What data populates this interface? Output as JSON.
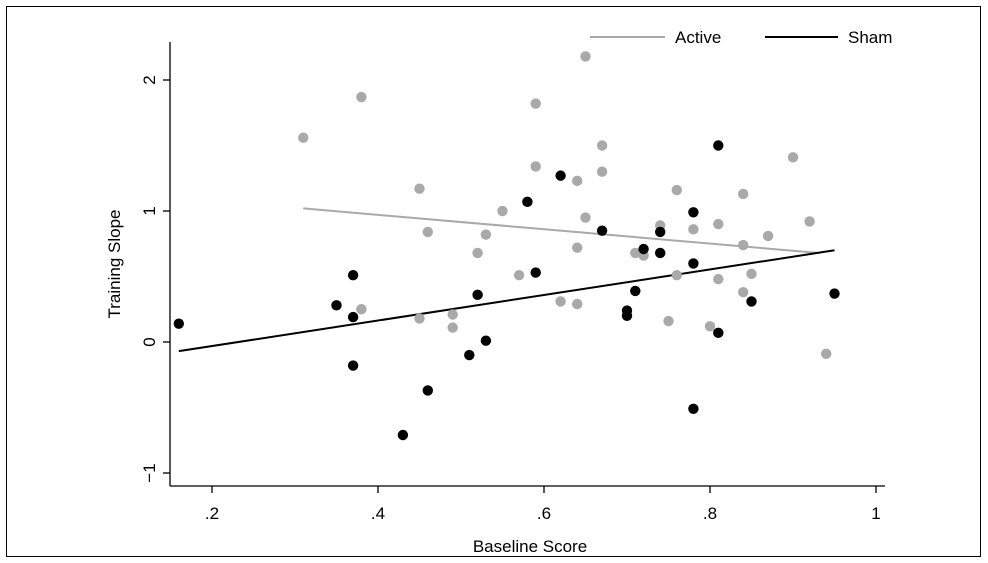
{
  "chart_data": {
    "type": "scatter",
    "xlabel": "Baseline Score",
    "ylabel": "Training Slope",
    "xlim": [
      0.15,
      1.02
    ],
    "ylim": [
      -1.05,
      2.3
    ],
    "x_ticks": [
      0.2,
      0.4,
      0.6,
      0.8,
      1.0
    ],
    "x_tick_labels": [
      ".2",
      ".4",
      ".6",
      ".8",
      "1"
    ],
    "y_ticks": [
      -1,
      0,
      1,
      2
    ],
    "y_tick_labels": [
      "−1",
      "0",
      "1",
      "2"
    ],
    "grid": false,
    "legend_position": "top-right",
    "series": [
      {
        "name": "Active",
        "color": "#a9a9a9",
        "fit_line": {
          "x": [
            0.31,
            0.93
          ],
          "y": [
            1.02,
            0.68
          ]
        },
        "points": [
          [
            0.31,
            1.56
          ],
          [
            0.38,
            1.87
          ],
          [
            0.38,
            0.25
          ],
          [
            0.45,
            1.17
          ],
          [
            0.46,
            0.84
          ],
          [
            0.45,
            0.18
          ],
          [
            0.49,
            0.11
          ],
          [
            0.49,
            0.21
          ],
          [
            0.52,
            0.68
          ],
          [
            0.53,
            0.82
          ],
          [
            0.55,
            1.0
          ],
          [
            0.57,
            0.51
          ],
          [
            0.59,
            1.82
          ],
          [
            0.59,
            1.34
          ],
          [
            0.62,
            0.31
          ],
          [
            0.64,
            1.23
          ],
          [
            0.64,
            0.72
          ],
          [
            0.64,
            0.29
          ],
          [
            0.65,
            2.18
          ],
          [
            0.65,
            0.95
          ],
          [
            0.67,
            1.5
          ],
          [
            0.67,
            1.3
          ],
          [
            0.71,
            0.68
          ],
          [
            0.72,
            0.66
          ],
          [
            0.74,
            0.89
          ],
          [
            0.75,
            0.16
          ],
          [
            0.76,
            1.16
          ],
          [
            0.76,
            0.51
          ],
          [
            0.78,
            0.86
          ],
          [
            0.8,
            0.12
          ],
          [
            0.81,
            0.9
          ],
          [
            0.81,
            0.48
          ],
          [
            0.84,
            1.13
          ],
          [
            0.84,
            0.74
          ],
          [
            0.84,
            0.38
          ],
          [
            0.85,
            0.52
          ],
          [
            0.87,
            0.81
          ],
          [
            0.9,
            1.41
          ],
          [
            0.92,
            0.92
          ],
          [
            0.94,
            -0.09
          ]
        ]
      },
      {
        "name": "Sham",
        "color": "#000000",
        "fit_line": {
          "x": [
            0.16,
            0.95
          ],
          "y": [
            -0.07,
            0.7
          ]
        },
        "points": [
          [
            0.16,
            0.14
          ],
          [
            0.35,
            0.28
          ],
          [
            0.37,
            0.51
          ],
          [
            0.37,
            0.19
          ],
          [
            0.37,
            -0.18
          ],
          [
            0.43,
            -0.71
          ],
          [
            0.46,
            -0.37
          ],
          [
            0.51,
            -0.1
          ],
          [
            0.52,
            0.36
          ],
          [
            0.53,
            0.01
          ],
          [
            0.58,
            1.07
          ],
          [
            0.59,
            0.53
          ],
          [
            0.62,
            1.27
          ],
          [
            0.67,
            0.85
          ],
          [
            0.7,
            0.24
          ],
          [
            0.7,
            0.2
          ],
          [
            0.71,
            0.39
          ],
          [
            0.72,
            0.71
          ],
          [
            0.74,
            0.84
          ],
          [
            0.74,
            0.68
          ],
          [
            0.78,
            0.99
          ],
          [
            0.78,
            0.6
          ],
          [
            0.78,
            -0.51
          ],
          [
            0.81,
            1.5
          ],
          [
            0.81,
            0.07
          ],
          [
            0.85,
            0.31
          ],
          [
            0.95,
            0.37
          ]
        ]
      }
    ]
  }
}
